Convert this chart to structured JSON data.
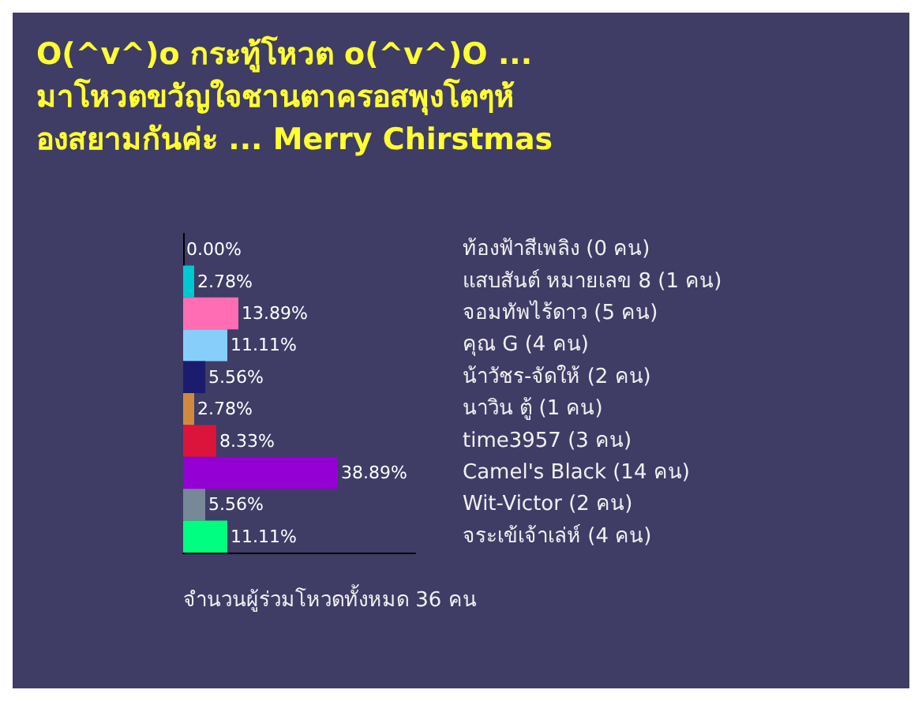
{
  "chart_data": {
    "type": "bar",
    "orientation": "horizontal",
    "title": "O(^v^)o กระทู้โหวต o(^v^)O ... มาโหวตขวัญใจชานตาครอสพุงโตๆห้องสยามกันค่ะ ... Merry Chirstmas",
    "categories": [
      "ท้องฟ้าสีเพลิง (0 คน)",
      "แสบสันต์ หมายเลข 8 (1 คน)",
      "จอมทัพไร้ดาว (5 คน)",
      "คุณ G (4 คน)",
      "น้าวัชร-จัดให้ (2 คน)",
      "นาวิน ตู้ (1 คน)",
      "time3957 (3 คน)",
      "Camel's Black (14 คน)",
      "Wit-Victor (2 คน)",
      "จระเข้เจ้าเล่ห์ (4 คน)"
    ],
    "values": [
      0,
      2.78,
      13.89,
      11.11,
      5.56,
      2.78,
      8.33,
      38.89,
      5.56,
      11.11
    ],
    "value_labels": [
      "0.00%",
      "2.78%",
      "13.89%",
      "11.11%",
      "5.56%",
      "2.78%",
      "8.33%",
      "38.89%",
      "5.56%",
      "11.11%"
    ],
    "colors": [
      "#ff88dd",
      "#00c8d0",
      "#ff6eb4",
      "#87cefa",
      "#1c1c6e",
      "#d08a40",
      "#dc143c",
      "#9400d3",
      "#778899",
      "#00ff80"
    ],
    "annotations": [
      "จำนวนผู้ร่วมโหวดทั้งหมด 36 คน"
    ]
  }
}
